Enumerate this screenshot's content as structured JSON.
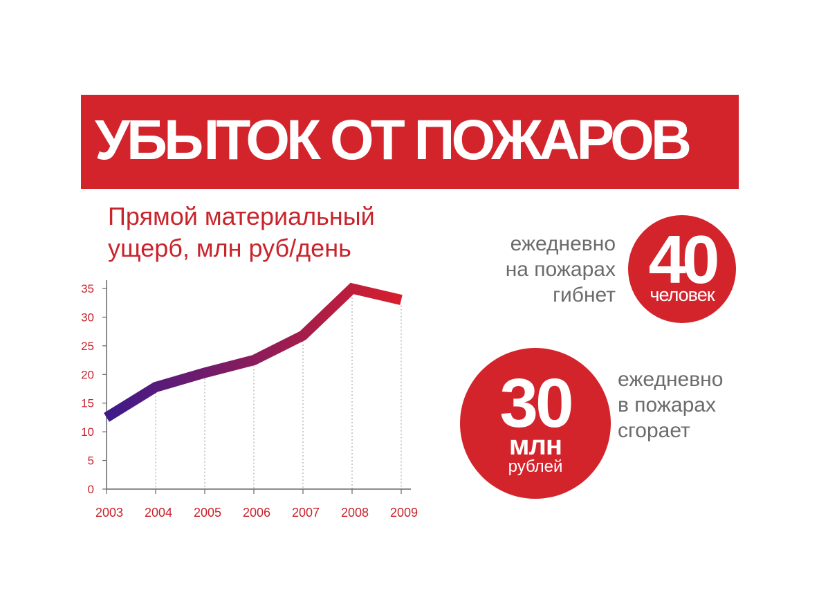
{
  "banner": {
    "title": "УБЫТОК ОТ ПОЖАРОВ"
  },
  "chart_data": {
    "type": "line",
    "title_lines": [
      "Прямой материальный",
      "ущерб, млн руб/день"
    ],
    "x": [
      "2003",
      "2004",
      "2005",
      "2006",
      "2007",
      "2008",
      "2009"
    ],
    "series": [
      {
        "values": [
          12.5,
          17.8,
          20.3,
          22.5,
          26.8,
          35.0,
          33.0
        ]
      }
    ],
    "yticks": [
      0,
      5,
      10,
      15,
      20,
      25,
      30,
      35
    ],
    "ylim": [
      0,
      37
    ],
    "xlabel": "",
    "ylabel": "",
    "grid": "vertical dotted",
    "gradient": [
      "#3d1a8a",
      "#d81e2c"
    ],
    "axis_color": "#666666",
    "label_color": "#c8242c"
  },
  "stat_deaths": {
    "text_lines": [
      "ежедневно",
      "на пожарах",
      "гибнет"
    ],
    "number": "40",
    "unit": "человек"
  },
  "stat_money": {
    "text_lines": [
      "ежедневно",
      "в пожарах",
      "сгорает"
    ],
    "number": "30",
    "unit": "млн",
    "unit2": "рублей"
  }
}
